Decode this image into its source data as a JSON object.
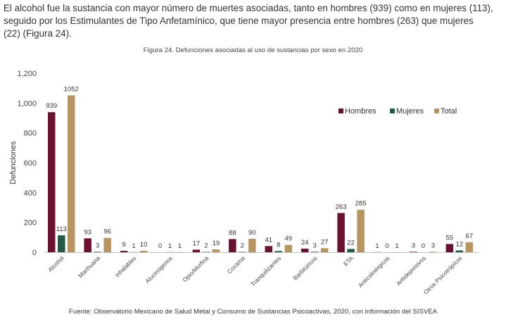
{
  "intro": {
    "line1": "El alcohol fue la sustancia con mayor número de muertes asociadas, tanto en hombres (939) como en mujeres (113),",
    "line2": "seguido por los Estimulantes de Tipo Anfetamínico, que tiene mayor presencia entre hombres (263) que mujeres",
    "line3": "(22) (Figura 24)."
  },
  "source": "Fuente: Observatorio Mexicano de Salud Metal y Consumo de Sustancias Psicoactivas, 2020, con información del SISVEA",
  "colors": {
    "hombres": "#6b1030",
    "mujeres": "#235a45",
    "total": "#b89560"
  },
  "chart_data": {
    "type": "bar",
    "title": "Figura 24. Defunciones asociadas al uso de sustancias por sexo en 2020",
    "ylabel": "Defunciones",
    "xlabel": "",
    "ylim": [
      0,
      1200
    ],
    "yticks": [
      "0",
      "200",
      "400",
      "600",
      "800",
      "1,000",
      "1,200"
    ],
    "grid": false,
    "legend": "top-right",
    "categories": [
      "Alcohol",
      "Marihuana",
      "Inhalables",
      "Alucinógenos",
      "Opio/Morfina",
      "Cocaína",
      "Tranquilizantes",
      "Barbitúricos",
      "ETA",
      "Anticolinérgicos",
      "Antidepresivos",
      "Otros Psicotrópicos"
    ],
    "series": [
      {
        "name": "Hombres",
        "values": [
          939,
          93,
          9,
          0,
          17,
          88,
          41,
          24,
          263,
          1,
          3,
          55
        ]
      },
      {
        "name": "Mujeres",
        "values": [
          113,
          3,
          1,
          1,
          2,
          2,
          8,
          3,
          22,
          0,
          0,
          12
        ]
      },
      {
        "name": "Total",
        "values": [
          1052,
          96,
          10,
          1,
          19,
          90,
          49,
          27,
          285,
          1,
          3,
          67
        ]
      }
    ]
  }
}
